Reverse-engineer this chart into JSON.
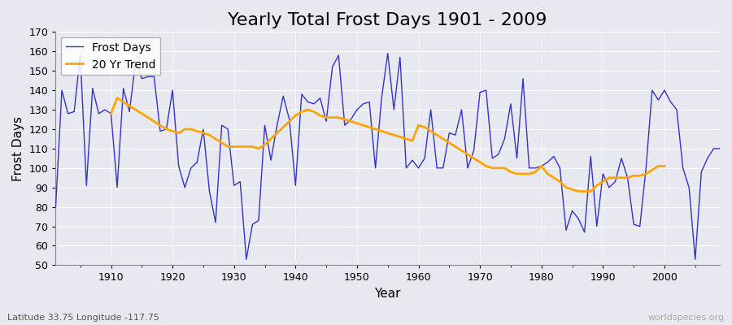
{
  "title": "Yearly Total Frost Days 1901 - 2009",
  "xlabel": "Year",
  "ylabel": "Frost Days",
  "subtitle": "Latitude 33.75 Longitude -117.75",
  "watermark": "worldspecies.org",
  "years": [
    1901,
    1902,
    1903,
    1904,
    1905,
    1906,
    1907,
    1908,
    1909,
    1910,
    1911,
    1912,
    1913,
    1914,
    1915,
    1916,
    1917,
    1918,
    1919,
    1920,
    1921,
    1922,
    1923,
    1924,
    1925,
    1926,
    1927,
    1928,
    1929,
    1930,
    1931,
    1932,
    1933,
    1934,
    1935,
    1936,
    1937,
    1938,
    1939,
    1940,
    1941,
    1942,
    1943,
    1944,
    1945,
    1946,
    1947,
    1948,
    1949,
    1950,
    1951,
    1952,
    1953,
    1954,
    1955,
    1956,
    1957,
    1958,
    1959,
    1960,
    1961,
    1962,
    1963,
    1964,
    1965,
    1966,
    1967,
    1968,
    1969,
    1970,
    1971,
    1972,
    1973,
    1974,
    1975,
    1976,
    1977,
    1978,
    1979,
    1980,
    1981,
    1982,
    1983,
    1984,
    1985,
    1986,
    1987,
    1988,
    1989,
    1990,
    1991,
    1992,
    1993,
    1994,
    1995,
    1996,
    1997,
    1998,
    1999,
    2000,
    2001,
    2002,
    2003,
    2004,
    2005,
    2006,
    2007,
    2008,
    2009
  ],
  "frost_days": [
    80,
    140,
    128,
    129,
    158,
    91,
    141,
    128,
    130,
    128,
    90,
    141,
    129,
    155,
    146,
    147,
    147,
    119,
    120,
    140,
    101,
    90,
    100,
    103,
    120,
    88,
    72,
    122,
    120,
    91,
    93,
    53,
    71,
    73,
    122,
    104,
    122,
    137,
    125,
    91,
    138,
    134,
    133,
    136,
    124,
    152,
    158,
    122,
    125,
    130,
    133,
    134,
    100,
    136,
    159,
    130,
    157,
    100,
    104,
    100,
    105,
    130,
    100,
    100,
    118,
    117,
    130,
    100,
    109,
    139,
    140,
    105,
    107,
    115,
    133,
    105,
    146,
    100,
    100,
    101,
    103,
    106,
    100,
    68,
    78,
    74,
    67,
    106,
    70,
    97,
    90,
    93,
    105,
    95,
    71,
    70,
    100,
    140,
    135,
    140,
    134,
    130,
    100,
    90,
    53,
    98,
    105,
    110,
    110
  ],
  "trend_years": [
    1910,
    1911,
    1912,
    1913,
    1914,
    1915,
    1916,
    1917,
    1918,
    1919,
    1920,
    1921,
    1922,
    1923,
    1924,
    1925,
    1926,
    1927,
    1928,
    1929,
    1930,
    1931,
    1932,
    1933,
    1934,
    1935,
    1936,
    1937,
    1938,
    1939,
    1940,
    1941,
    1942,
    1943,
    1944,
    1945,
    1946,
    1947,
    1948,
    1949,
    1950,
    1951,
    1952,
    1953,
    1954,
    1955,
    1956,
    1957,
    1958,
    1959,
    1960,
    1961,
    1962,
    1963,
    1964,
    1965,
    1966,
    1967,
    1968,
    1969,
    1970,
    1971,
    1972,
    1973,
    1974,
    1975,
    1976,
    1977,
    1978,
    1979,
    1980,
    1981,
    1982,
    1983,
    1984,
    1985,
    1986,
    1987,
    1988,
    1989,
    1990,
    1991,
    1992,
    1993,
    1994,
    1995,
    1996,
    1997,
    1998,
    1999,
    2000
  ],
  "trend_values": [
    128,
    136,
    134,
    132,
    130,
    128,
    126,
    124,
    122,
    120,
    119,
    118,
    120,
    120,
    119,
    118,
    117,
    115,
    113,
    111,
    111,
    111,
    111,
    111,
    110,
    112,
    115,
    118,
    121,
    124,
    127,
    129,
    130,
    129,
    127,
    126,
    126,
    126,
    125,
    124,
    123,
    122,
    121,
    120,
    119,
    118,
    117,
    116,
    115,
    114,
    122,
    121,
    119,
    117,
    115,
    113,
    111,
    109,
    107,
    105,
    103,
    101,
    100,
    100,
    100,
    98,
    97,
    97,
    97,
    98,
    101,
    97,
    95,
    93,
    90,
    89,
    88,
    88,
    88,
    91,
    93,
    95,
    95,
    95,
    95,
    96,
    96,
    97,
    99,
    101,
    101
  ],
  "line_color": "#3333cc",
  "trend_color": "#ffa500",
  "bg_color": "#e8e8f0",
  "grid_color": "#ffffff",
  "ylim": [
    50,
    170
  ],
  "ytick_step": 10,
  "title_fontsize": 16,
  "axis_fontsize": 11,
  "legend_fontsize": 10
}
